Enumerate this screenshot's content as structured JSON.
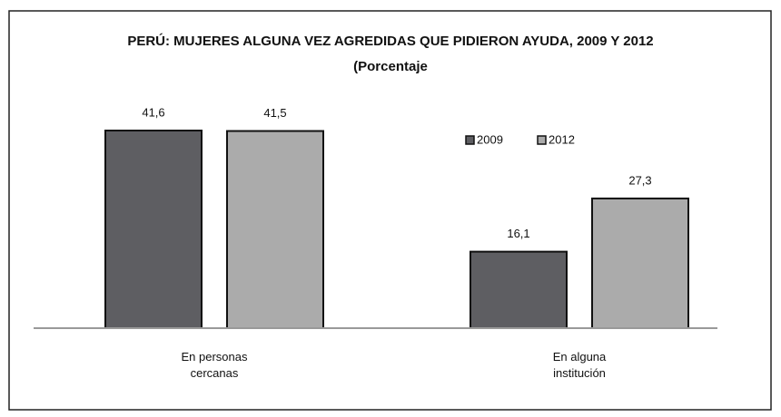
{
  "chart_data": {
    "type": "bar",
    "title": "PERÚ: MUJERES ALGUNA VEZ AGREDIDAS QUE PIDIERON AYUDA, 2009 Y 2012",
    "subtitle": "(Porcentaje",
    "categories": [
      "En personas cercanas",
      "En alguna institución"
    ],
    "series": [
      {
        "name": "2009",
        "color": "#5e5e62",
        "values": [
          41.6,
          16.1
        ],
        "value_labels": [
          "41,6",
          "16,1"
        ]
      },
      {
        "name": "2012",
        "color": "#ababab",
        "values": [
          41.5,
          27.3
        ],
        "value_labels": [
          "41,5",
          "27,3"
        ]
      }
    ],
    "legend": "upper right"
  }
}
